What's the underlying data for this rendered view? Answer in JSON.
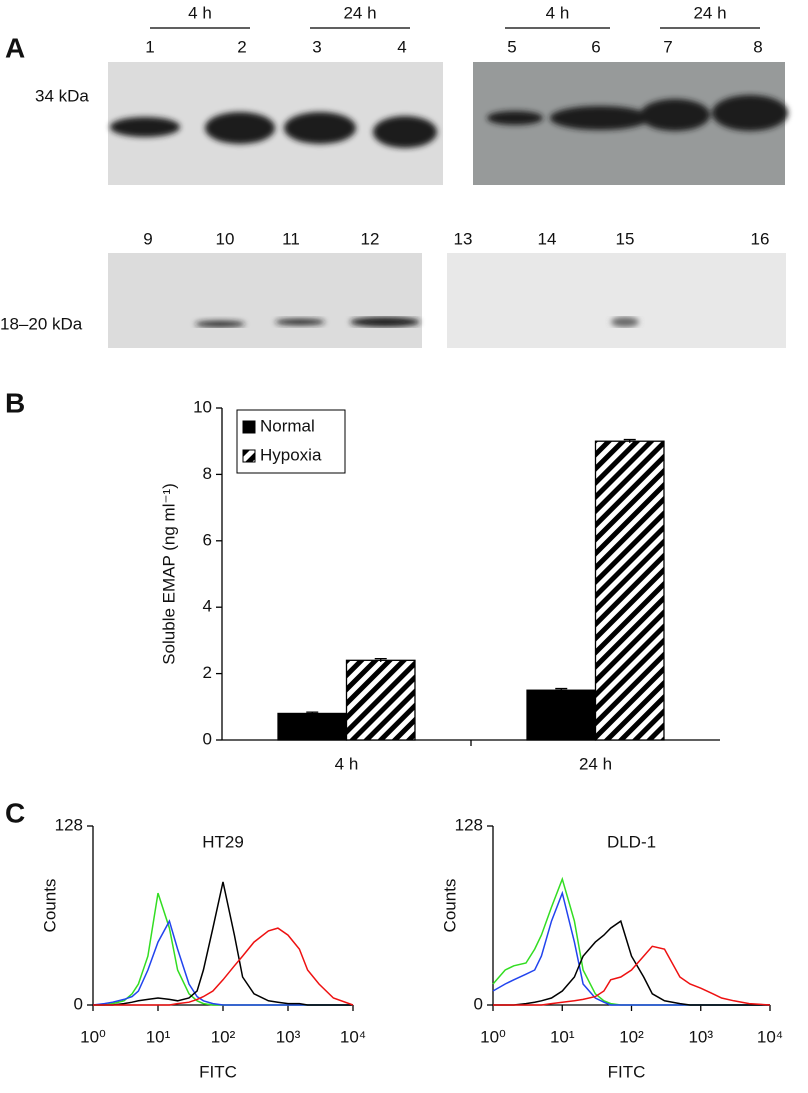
{
  "panels": [
    "A",
    "B",
    "C"
  ],
  "blot": {
    "top": {
      "groups": [
        "4 h",
        "24 h",
        "4 h",
        "24 h"
      ],
      "lanes": [
        "1",
        "2",
        "3",
        "4",
        "5",
        "6",
        "7",
        "8"
      ],
      "marker": "34 kDa"
    },
    "bottom": {
      "lanes": [
        "9",
        "10",
        "11",
        "12",
        "13",
        "14",
        "15",
        "16"
      ],
      "marker": "18–20 kDa"
    }
  },
  "chart_data": [
    {
      "type": "bar",
      "ylabel": "Soluble EMAP (ng ml⁻¹)",
      "categories": [
        "4 h",
        "24 h"
      ],
      "series": [
        {
          "name": "Normal",
          "color": "#000000",
          "values": [
            0.8,
            1.5
          ],
          "errors": [
            0.04,
            0.05
          ]
        },
        {
          "name": "Hypoxia",
          "color": "#000000",
          "pattern": "hatch",
          "values": [
            2.4,
            9.0
          ],
          "errors": [
            0.05,
            0.05
          ]
        }
      ],
      "ylim": [
        0,
        10
      ],
      "yticks": [
        0,
        2,
        4,
        6,
        8,
        10
      ],
      "grid": false,
      "legend": "top-left"
    },
    {
      "type": "line",
      "title": "HT29",
      "xlabel": "FITC",
      "ylabel": "Counts",
      "xscale": "log",
      "x": [
        1,
        1.5,
        2,
        3,
        4,
        5,
        7,
        10,
        15,
        20,
        30,
        40,
        50,
        70,
        100,
        150,
        200,
        300,
        500,
        700,
        1000,
        1500,
        2000,
        3000,
        5000,
        10000
      ],
      "series": [
        {
          "color": "#33dd22",
          "values": [
            0,
            0,
            1,
            3,
            8,
            15,
            35,
            80,
            55,
            25,
            8,
            3,
            1,
            0,
            0,
            0,
            0,
            0,
            0,
            0,
            0,
            0,
            0,
            0,
            0,
            0
          ]
        },
        {
          "color": "#2244ee",
          "values": [
            0,
            1,
            2,
            4,
            6,
            10,
            25,
            45,
            60,
            40,
            15,
            6,
            3,
            1,
            0,
            0,
            0,
            0,
            0,
            0,
            0,
            0,
            0,
            0,
            0,
            0
          ]
        },
        {
          "color": "#000000",
          "values": [
            0,
            0,
            0,
            1,
            2,
            3,
            4,
            5,
            4,
            3,
            5,
            10,
            25,
            55,
            88,
            50,
            20,
            8,
            3,
            2,
            1,
            1,
            0,
            0,
            0,
            0
          ]
        },
        {
          "color": "#ee1111",
          "values": [
            0,
            0,
            0,
            0,
            0,
            0,
            0,
            0,
            0,
            1,
            2,
            4,
            6,
            10,
            18,
            28,
            35,
            45,
            53,
            55,
            50,
            40,
            25,
            15,
            5,
            0
          ]
        }
      ],
      "xlim": [
        1,
        10000
      ],
      "xticks": [
        {
          "value": 1,
          "label": "10⁰"
        },
        {
          "value": 10,
          "label": "10¹"
        },
        {
          "value": 100,
          "label": "10²"
        },
        {
          "value": 1000,
          "label": "10³"
        },
        {
          "value": 10000,
          "label": "10⁴"
        }
      ],
      "ylim": [
        0,
        128
      ],
      "yticks": [
        0,
        128
      ]
    },
    {
      "type": "line",
      "title": "DLD-1",
      "xlabel": "FITC",
      "ylabel": "Counts",
      "xscale": "log",
      "x": [
        1,
        1.5,
        2,
        3,
        4,
        5,
        7,
        10,
        15,
        20,
        30,
        40,
        50,
        70,
        100,
        150,
        200,
        300,
        500,
        700,
        1000,
        1500,
        2000,
        3000,
        5000,
        10000
      ],
      "series": [
        {
          "color": "#33dd22",
          "values": [
            15,
            25,
            28,
            30,
            40,
            50,
            70,
            90,
            60,
            25,
            8,
            3,
            1,
            0,
            0,
            0,
            0,
            0,
            0,
            0,
            0,
            0,
            0,
            0,
            0,
            0
          ]
        },
        {
          "color": "#2244ee",
          "values": [
            10,
            15,
            18,
            22,
            25,
            35,
            60,
            80,
            45,
            15,
            5,
            2,
            0,
            0,
            0,
            0,
            0,
            0,
            0,
            0,
            0,
            0,
            0,
            0,
            0,
            0
          ]
        },
        {
          "color": "#000000",
          "values": [
            0,
            0,
            0,
            1,
            2,
            3,
            5,
            10,
            20,
            35,
            45,
            50,
            55,
            60,
            35,
            20,
            8,
            3,
            1,
            0,
            0,
            0,
            0,
            0,
            0,
            0
          ]
        },
        {
          "color": "#ee1111",
          "values": [
            0,
            0,
            0,
            0,
            0,
            0,
            1,
            2,
            3,
            4,
            6,
            10,
            18,
            20,
            25,
            35,
            42,
            40,
            20,
            15,
            12,
            8,
            5,
            3,
            1,
            0
          ]
        }
      ],
      "xlim": [
        1,
        10000
      ],
      "xticks": [
        {
          "value": 1,
          "label": "10⁰"
        },
        {
          "value": 10,
          "label": "10¹"
        },
        {
          "value": 100,
          "label": "10²"
        },
        {
          "value": 1000,
          "label": "10³"
        },
        {
          "value": 10000,
          "label": "10⁴"
        }
      ],
      "ylim": [
        0,
        128
      ],
      "yticks": [
        0,
        128
      ]
    }
  ]
}
